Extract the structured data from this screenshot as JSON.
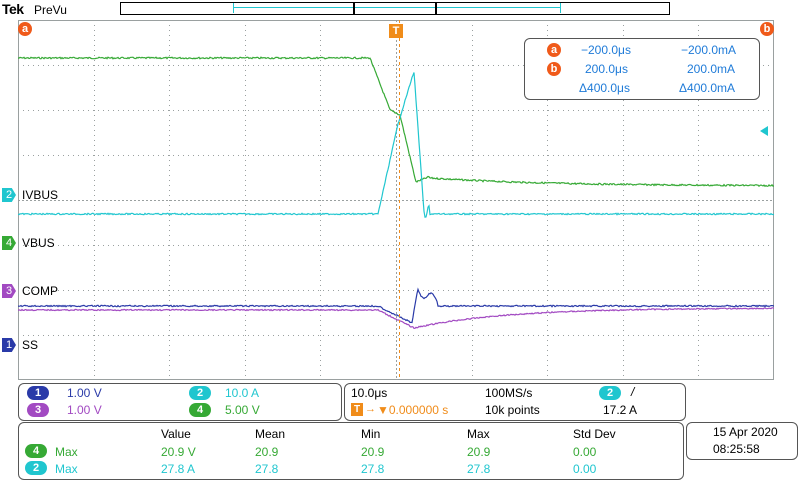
{
  "header": {
    "brand": "Tek",
    "mode": "PreVu"
  },
  "trigger_marker": "T",
  "cursor_markers": {
    "a": "a",
    "b": "b"
  },
  "channel_labels": [
    {
      "num": "2",
      "name": "IVBUS",
      "color": "#20c6cf"
    },
    {
      "num": "4",
      "name": "VBUS",
      "color": "#36a935"
    },
    {
      "num": "3",
      "name": "COMP",
      "color": "#a24ac2"
    },
    {
      "num": "1",
      "name": "SS",
      "color": "#2a3aa8"
    }
  ],
  "cursor_readout": {
    "a_time": "−200.0μs",
    "a_value": "−200.0mA",
    "b_time": "200.0μs",
    "b_value": "200.0mA",
    "delta_time": "Δ400.0μs",
    "delta_value": "Δ400.0mA"
  },
  "vertical_scales": [
    {
      "ch": "1",
      "scale": "1.00 V",
      "color": "#2a3aa8"
    },
    {
      "ch": "2",
      "scale": "10.0 A",
      "color": "#20c6cf"
    },
    {
      "ch": "3",
      "scale": "1.00 V",
      "color": "#a24ac2"
    },
    {
      "ch": "4",
      "scale": "5.00 V",
      "color": "#36a935"
    }
  ],
  "horizontal": {
    "time_div": "10.0μs",
    "sample_rate": "100MS/s",
    "trigger_pos": "▼0.000000 s",
    "record_length": "10k points",
    "trigger_channel": "2",
    "trigger_slope": "/",
    "trigger_level": "17.2 A"
  },
  "measurements": {
    "headers": [
      "Value",
      "Mean",
      "Min",
      "Max",
      "Std Dev"
    ],
    "rows": [
      {
        "ch": "4",
        "label": "Max",
        "color": "#36a935",
        "value": "20.9 V",
        "mean": "20.9",
        "min": "20.9",
        "max": "20.9",
        "std": "0.00"
      },
      {
        "ch": "2",
        "label": "Max",
        "color": "#20c6cf",
        "value": "27.8 A",
        "mean": "27.8",
        "min": "27.8",
        "max": "27.8",
        "std": "0.00"
      }
    ]
  },
  "datetime": {
    "date": "15 Apr  2020",
    "time": "08:25:58"
  },
  "colors": {
    "ch1": "#2a3aa8",
    "ch2": "#20c6cf",
    "ch3": "#a24ac2",
    "ch4": "#36a935",
    "cursor": "#f05a1a",
    "grid": "#9aa0a0"
  }
}
